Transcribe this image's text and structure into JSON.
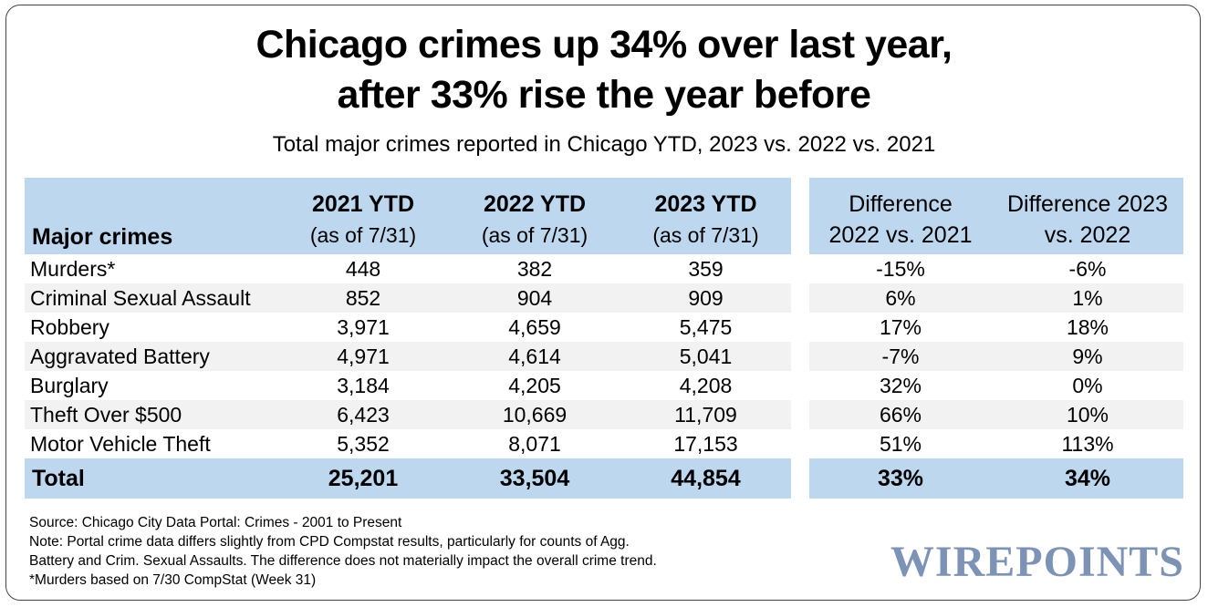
{
  "title_line1": "Chicago crimes up 34% over last year,",
  "title_line2": "after 33% rise the year before",
  "subtitle": "Total major crimes reported in Chicago YTD, 2023 vs. 2022 vs. 2021",
  "chart_data": {
    "type": "table",
    "columns": {
      "crimes": "Major crimes",
      "y2021": {
        "year": "2021 YTD",
        "asof": "(as of 7/31)"
      },
      "y2022": {
        "year": "2022 YTD",
        "asof": "(as of 7/31)"
      },
      "y2023": {
        "year": "2023 YTD",
        "asof": "(as of 7/31)"
      },
      "diff1": {
        "line1": "Difference",
        "line2": "2022 vs. 2021"
      },
      "diff2": {
        "line1": "Difference 2023",
        "line2": "vs. 2022"
      }
    },
    "rows": [
      {
        "name": "Murders*",
        "y2021": "448",
        "y2022": "382",
        "y2023": "359",
        "diff1": "-15%",
        "diff2": "-6%"
      },
      {
        "name": "Criminal Sexual Assault",
        "y2021": "852",
        "y2022": "904",
        "y2023": "909",
        "diff1": "6%",
        "diff2": "1%"
      },
      {
        "name": "Robbery",
        "y2021": "3,971",
        "y2022": "4,659",
        "y2023": "5,475",
        "diff1": "17%",
        "diff2": "18%"
      },
      {
        "name": "Aggravated Battery",
        "y2021": "4,971",
        "y2022": "4,614",
        "y2023": "5,041",
        "diff1": "-7%",
        "diff2": "9%"
      },
      {
        "name": "Burglary",
        "y2021": "3,184",
        "y2022": "4,205",
        "y2023": "4,208",
        "diff1": "32%",
        "diff2": "0%"
      },
      {
        "name": "Theft Over $500",
        "y2021": "6,423",
        "y2022": "10,669",
        "y2023": "11,709",
        "diff1": "66%",
        "diff2": "10%"
      },
      {
        "name": "Motor Vehicle Theft",
        "y2021": "5,352",
        "y2022": "8,071",
        "y2023": "17,153",
        "diff1": "51%",
        "diff2": "113%"
      }
    ],
    "total": {
      "name": "Total",
      "y2021": "25,201",
      "y2022": "33,504",
      "y2023": "44,854",
      "diff1": "33%",
      "diff2": "34%"
    }
  },
  "notes": {
    "source": "Source: Chicago City Data Portal: Crimes - 2001 to Present",
    "note_line1": "Note: Portal crime data differs slightly from CPD Compstat results, particularly for counts of Agg.",
    "note_line2": "Battery and Crim. Sexual Assaults. The difference does not materially impact the overall crime trend.",
    "murders_note": "*Murders based on 7/30 CompStat (Week 31)"
  },
  "logo": "WIREPOINTS"
}
